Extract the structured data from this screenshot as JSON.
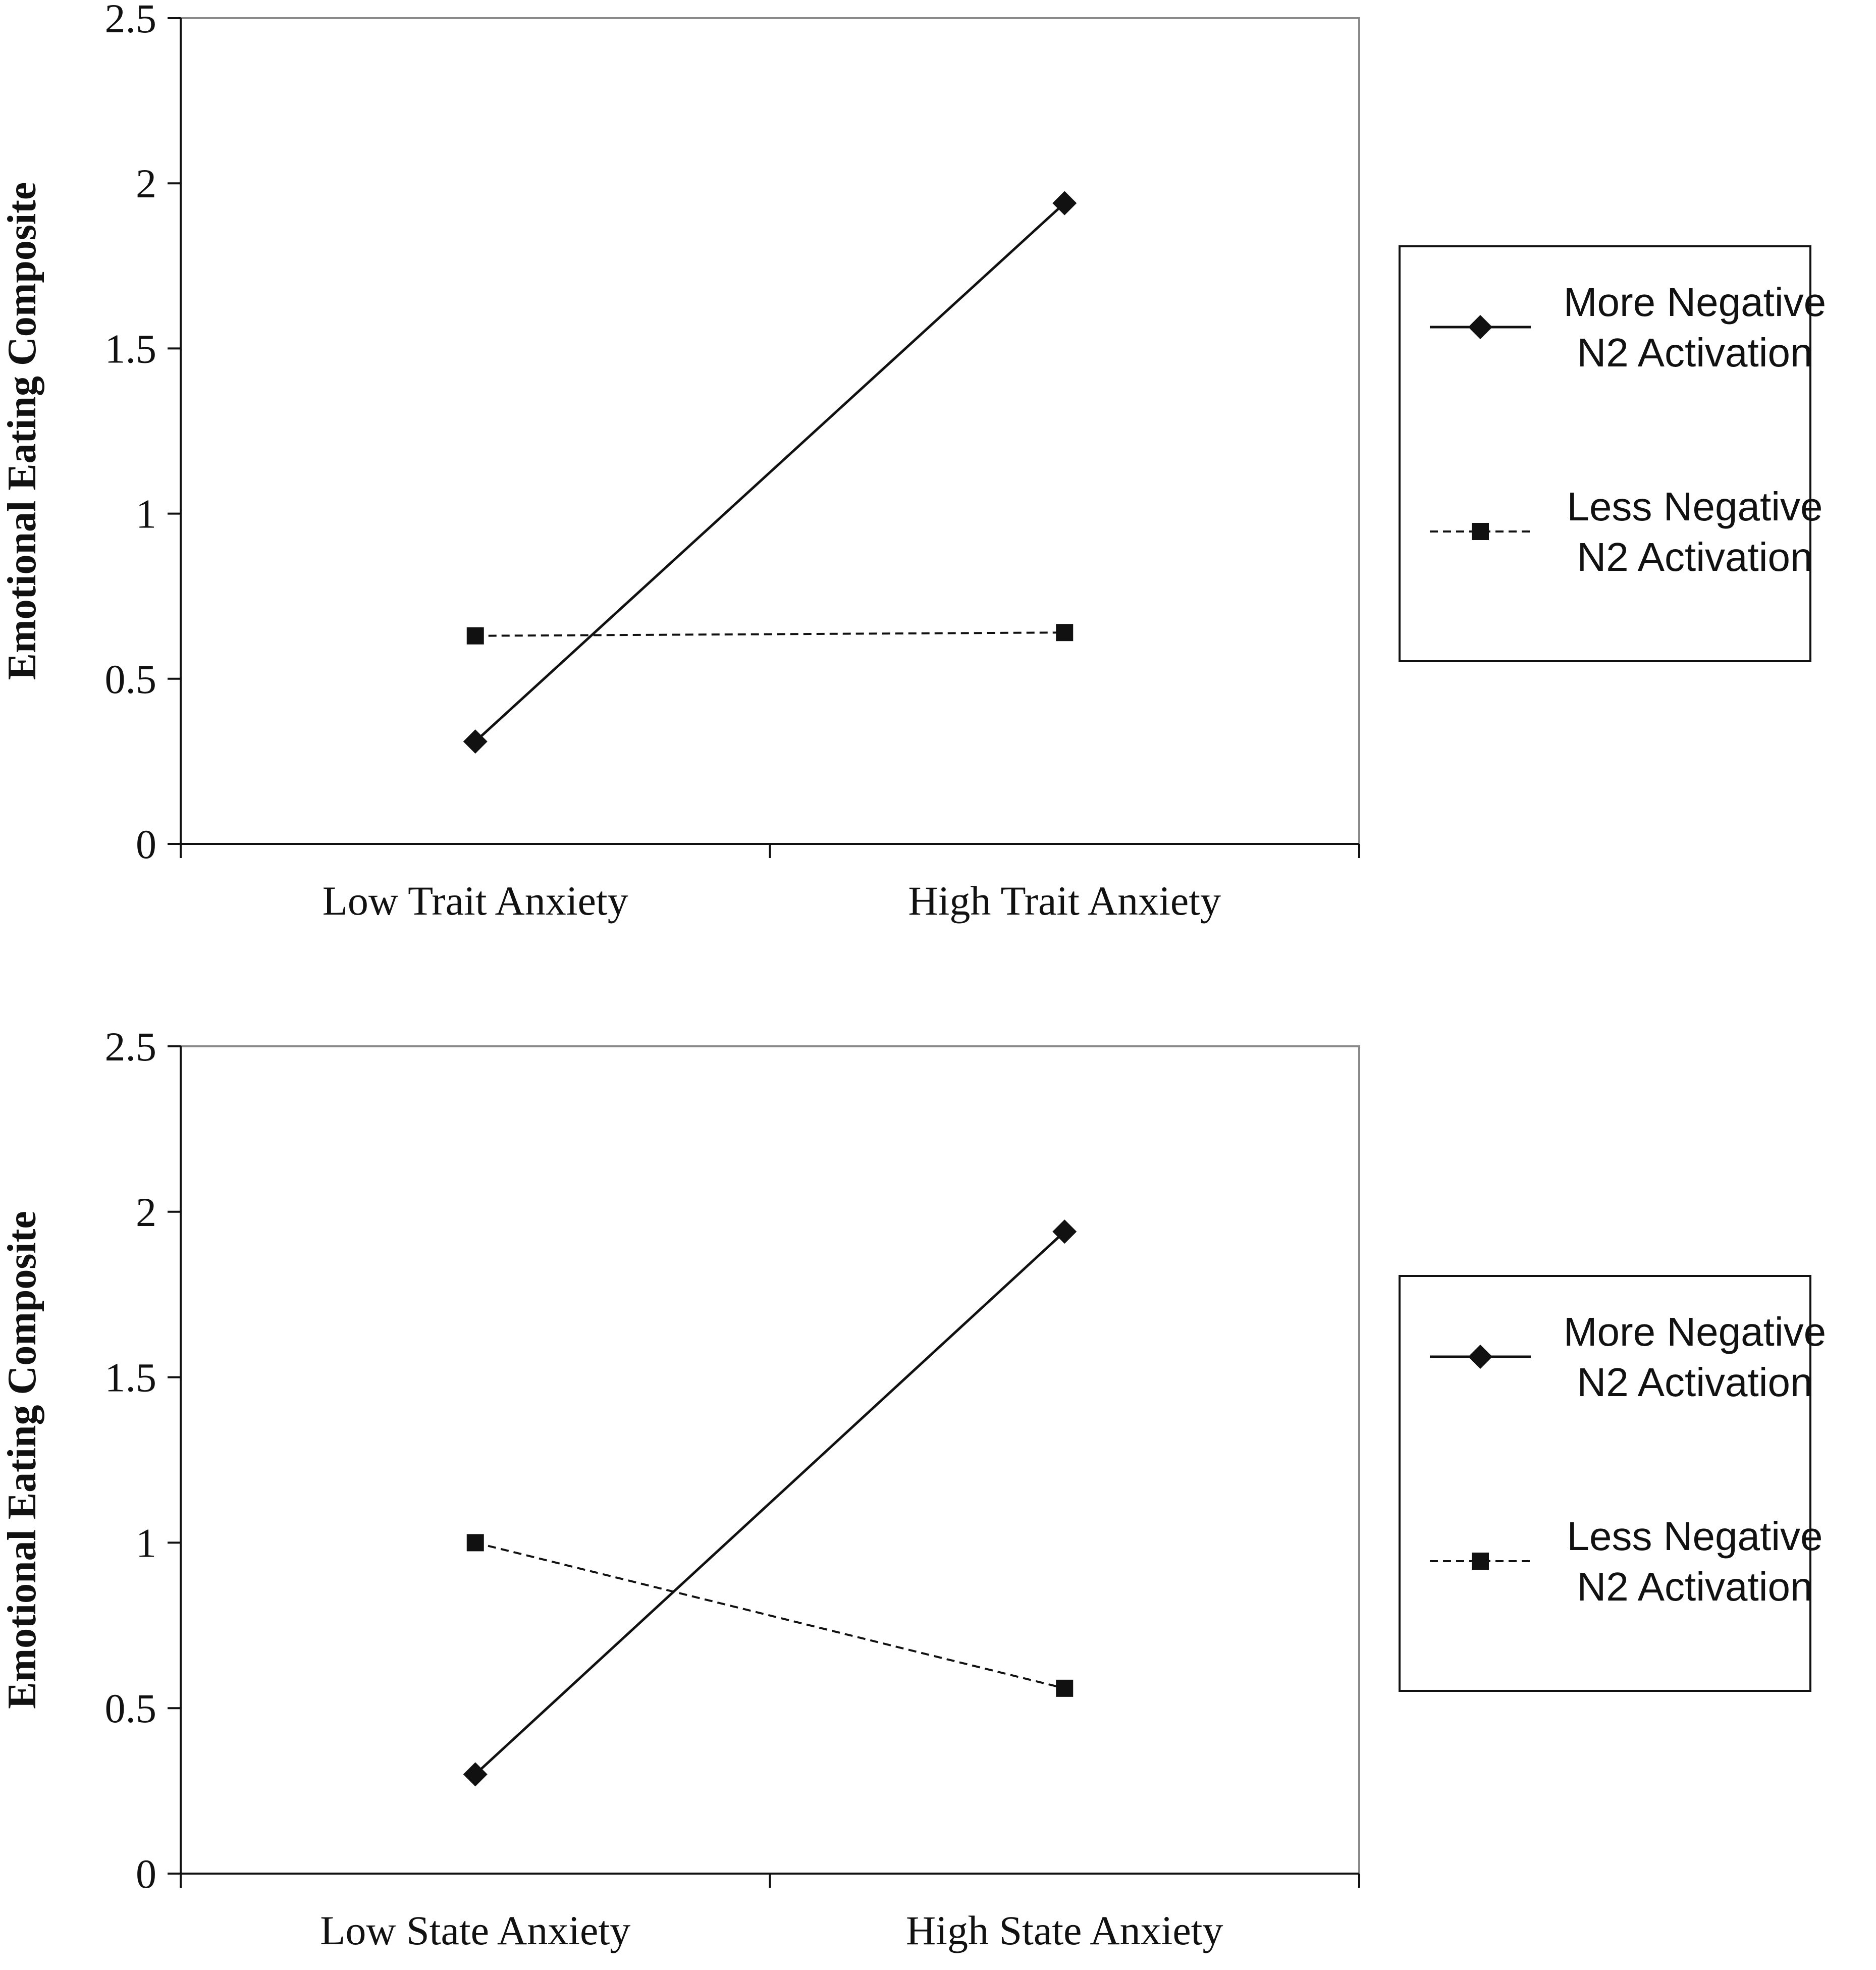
{
  "chart_data": [
    {
      "type": "line",
      "categories": [
        "Low Trait Anxiety",
        "High Trait Anxiety"
      ],
      "ylabel": "Emotional Eating Composite",
      "ylim": [
        0,
        2.5
      ],
      "yticks": [
        "0",
        "0.5",
        "1",
        "1.5",
        "2",
        "2.5"
      ],
      "grid": false,
      "legend_position": "right",
      "series": [
        {
          "name_lines": [
            "More Negative",
            "N2 Activation"
          ],
          "marker": "diamond",
          "line_style": "solid",
          "values": [
            0.31,
            1.94
          ]
        },
        {
          "name_lines": [
            "Less Negative",
            "N2 Activation"
          ],
          "marker": "square",
          "line_style": "dashed",
          "values": [
            0.63,
            0.64
          ]
        }
      ]
    },
    {
      "type": "line",
      "categories": [
        "Low State Anxiety",
        "High State Anxiety"
      ],
      "ylabel": "Emotional Eating Composite",
      "ylim": [
        0,
        2.5
      ],
      "yticks": [
        "0",
        "0.5",
        "1",
        "1.5",
        "2",
        "2.5"
      ],
      "grid": false,
      "legend_position": "right",
      "series": [
        {
          "name_lines": [
            "More Negative",
            "N2 Activation"
          ],
          "marker": "diamond",
          "line_style": "solid",
          "values": [
            0.3,
            1.94
          ]
        },
        {
          "name_lines": [
            "Less Negative",
            "N2 Activation"
          ],
          "marker": "square",
          "line_style": "dashed",
          "values": [
            1.0,
            0.56
          ]
        }
      ]
    }
  ]
}
